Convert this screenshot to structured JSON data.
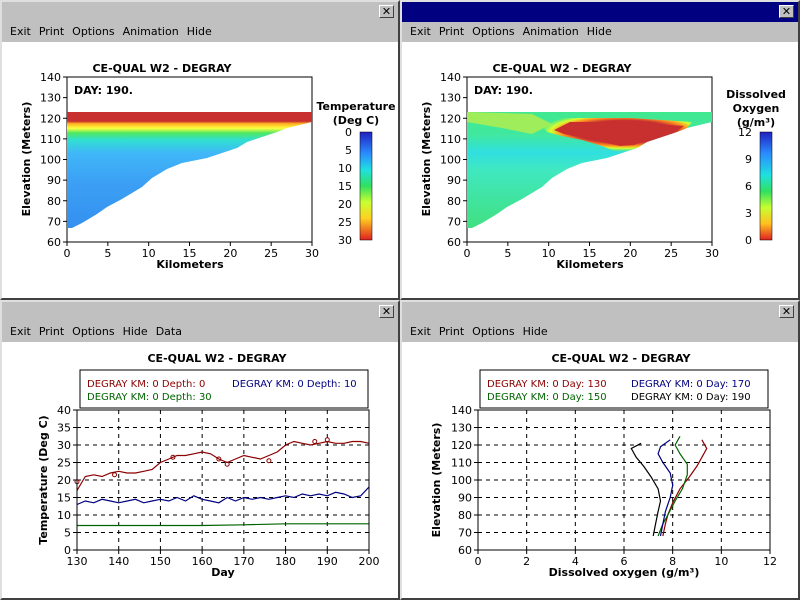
{
  "windows": [
    {
      "id": "temp-contour",
      "menu": [
        "Exit",
        "Print",
        "Options",
        "Animation",
        "Hide"
      ],
      "title": "CE-QUAL W2 - DEGRAY",
      "day_label": "DAY: 190.",
      "colorbar_title": [
        "Temperature",
        "(Deg C)"
      ],
      "colorbar_ticks": [
        "0",
        "5",
        "10",
        "15",
        "20",
        "25",
        "30"
      ]
    },
    {
      "id": "do-contour",
      "menu": [
        "Exit",
        "Print",
        "Options",
        "Animation",
        "Hide"
      ],
      "title": "CE-QUAL W2 - DEGRAY",
      "day_label": "DAY: 190.",
      "colorbar_title": [
        "Dissolved",
        "Oxygen",
        "(g/m³)"
      ],
      "colorbar_ticks": [
        "12",
        "9",
        "6",
        "3",
        "0"
      ]
    },
    {
      "id": "temp-timeseries",
      "menu": [
        "Exit",
        "Print",
        "Options",
        "Hide",
        "Data"
      ],
      "title": "CE-QUAL W2 - DEGRAY"
    },
    {
      "id": "do-profile",
      "menu": [
        "Exit",
        "Print",
        "Options",
        "Hide"
      ],
      "title": "CE-QUAL W2 - DEGRAY"
    }
  ],
  "colors": {
    "red": "#8b0000",
    "navy": "#000080",
    "green": "#006400",
    "black": "#000000"
  },
  "chart_data": [
    {
      "type": "heatmap",
      "title": "CE-QUAL W2 - DEGRAY",
      "xlabel": "Kilometers",
      "ylabel": "Elevation (Meters)",
      "xlim": [
        0,
        30
      ],
      "ylim": [
        60,
        140
      ],
      "x_ticks": [
        "0",
        "5",
        "10",
        "15",
        "20",
        "25",
        "30"
      ],
      "y_ticks": [
        "140",
        "130",
        "120",
        "110",
        "100",
        "90",
        "80",
        "70",
        "60"
      ],
      "annotation": "DAY: 190.",
      "colorbar_label": "Temperature (Deg C)",
      "colorbar_range": [
        0,
        30
      ]
    },
    {
      "type": "heatmap",
      "title": "CE-QUAL W2 - DEGRAY",
      "xlabel": "Kilometers",
      "ylabel": "Elevation (Meters)",
      "xlim": [
        0,
        30
      ],
      "ylim": [
        60,
        140
      ],
      "x_ticks": [
        "0",
        "5",
        "10",
        "15",
        "20",
        "25",
        "30"
      ],
      "y_ticks": [
        "140",
        "130",
        "120",
        "110",
        "100",
        "90",
        "80",
        "70",
        "60"
      ],
      "annotation": "DAY: 190.",
      "colorbar_label": "Dissolved Oxygen (g/m³)",
      "colorbar_range": [
        0,
        12
      ]
    },
    {
      "type": "line",
      "title": "CE-QUAL W2 - DEGRAY",
      "xlabel": "Day",
      "ylabel": "Temperature (Deg C)",
      "xlim": [
        130,
        200
      ],
      "ylim": [
        0,
        40
      ],
      "x_ticks": [
        "130",
        "140",
        "150",
        "160",
        "170",
        "180",
        "190",
        "200"
      ],
      "y_ticks": [
        "40",
        "35",
        "30",
        "25",
        "20",
        "15",
        "10",
        "5",
        "0"
      ],
      "legend_position": "top",
      "series": [
        {
          "name": "DEGRAY KM: 0 Depth: 0",
          "color": "#8b0000",
          "x": [
            130,
            132,
            134,
            136,
            138,
            140,
            142,
            144,
            146,
            148,
            150,
            152,
            154,
            156,
            158,
            160,
            162,
            164,
            166,
            168,
            170,
            172,
            174,
            176,
            178,
            180,
            182,
            184,
            186,
            188,
            190,
            192,
            194,
            196,
            198,
            200
          ],
          "values": [
            17,
            21,
            21.5,
            21,
            22,
            22.5,
            22,
            22,
            22.5,
            23,
            25,
            26,
            27,
            27,
            27.5,
            28,
            27.5,
            26,
            25,
            26,
            27,
            26.5,
            26,
            27,
            28,
            30,
            31,
            30.5,
            30,
            30.5,
            31,
            30.5,
            30.5,
            31,
            31,
            30.5
          ]
        },
        {
          "name": "DEGRAY KM: 0 Depth: 10",
          "color": "#000080",
          "x": [
            130,
            132,
            134,
            136,
            138,
            140,
            142,
            144,
            146,
            148,
            150,
            152,
            154,
            156,
            158,
            160,
            162,
            164,
            166,
            168,
            170,
            172,
            174,
            176,
            178,
            180,
            182,
            184,
            186,
            188,
            190,
            192,
            194,
            196,
            198,
            200
          ],
          "values": [
            13,
            14,
            13.5,
            14.5,
            14,
            13.5,
            14,
            14.5,
            13.5,
            14,
            14.5,
            14,
            15,
            14,
            15.5,
            14.5,
            14,
            13.5,
            15,
            14,
            15,
            14.5,
            15,
            14.5,
            15,
            15.5,
            15,
            16,
            15.5,
            16,
            15.5,
            16.5,
            16,
            15,
            15.5,
            18
          ]
        },
        {
          "name": "DEGRAY KM: 0 Depth: 30",
          "color": "#006400",
          "x": [
            130,
            140,
            150,
            160,
            170,
            180,
            190,
            200
          ],
          "values": [
            7,
            7,
            7,
            7,
            7.2,
            7.5,
            7.5,
            7.5
          ]
        }
      ],
      "observed_points": {
        "color": "#8b0000",
        "x": [
          130,
          139,
          153,
          164,
          166,
          176,
          187,
          190
        ],
        "values": [
          19.5,
          21.5,
          26.5,
          26,
          24.5,
          25.5,
          31,
          31.5
        ]
      }
    },
    {
      "type": "line",
      "title": "CE-QUAL W2 - DEGRAY",
      "xlabel": "Dissolved oxygen (g/m³)",
      "ylabel": "Elevation (Meters)",
      "xlim": [
        0,
        12
      ],
      "ylim": [
        60,
        140
      ],
      "x_ticks": [
        "0",
        "2",
        "4",
        "6",
        "8",
        "10",
        "12"
      ],
      "y_ticks": [
        "140",
        "130",
        "120",
        "110",
        "100",
        "90",
        "80",
        "70",
        "60"
      ],
      "legend_position": "top",
      "series": [
        {
          "name": "DEGRAY KM: 0  Day: 130",
          "color": "#8b0000",
          "x": [
            7.6,
            7.7,
            7.8,
            8,
            8.3,
            8.7,
            9,
            9.2,
            9.4,
            9.2
          ],
          "y": [
            68,
            75,
            80,
            87,
            95,
            102,
            108,
            113,
            118,
            123
          ]
        },
        {
          "name": "DEGRAY KM: 0  Day: 150",
          "color": "#006400",
          "x": [
            7.4,
            7.6,
            7.8,
            8.1,
            8.4,
            8.6,
            8.6,
            8.3,
            8.1,
            8.3
          ],
          "y": [
            68,
            75,
            80,
            88,
            95,
            103,
            109,
            115,
            120,
            125
          ]
        },
        {
          "name": "DEGRAY KM: 0  Day: 170",
          "color": "#000080",
          "x": [
            7.5,
            7.6,
            7.7,
            7.9,
            8,
            7.9,
            7.6,
            7.4,
            7.5,
            7.9
          ],
          "y": [
            68,
            75,
            82,
            90,
            97,
            104,
            110,
            115,
            119,
            123
          ]
        },
        {
          "name": "DEGRAY KM: 0  Day: 190",
          "color": "#000000",
          "x": [
            7.2,
            7.3,
            7.4,
            7.5,
            7.4,
            7.1,
            6.8,
            6.5,
            6.3,
            6.7
          ],
          "y": [
            68,
            75,
            82,
            88,
            95,
            102,
            108,
            113,
            118,
            121
          ]
        }
      ]
    }
  ]
}
